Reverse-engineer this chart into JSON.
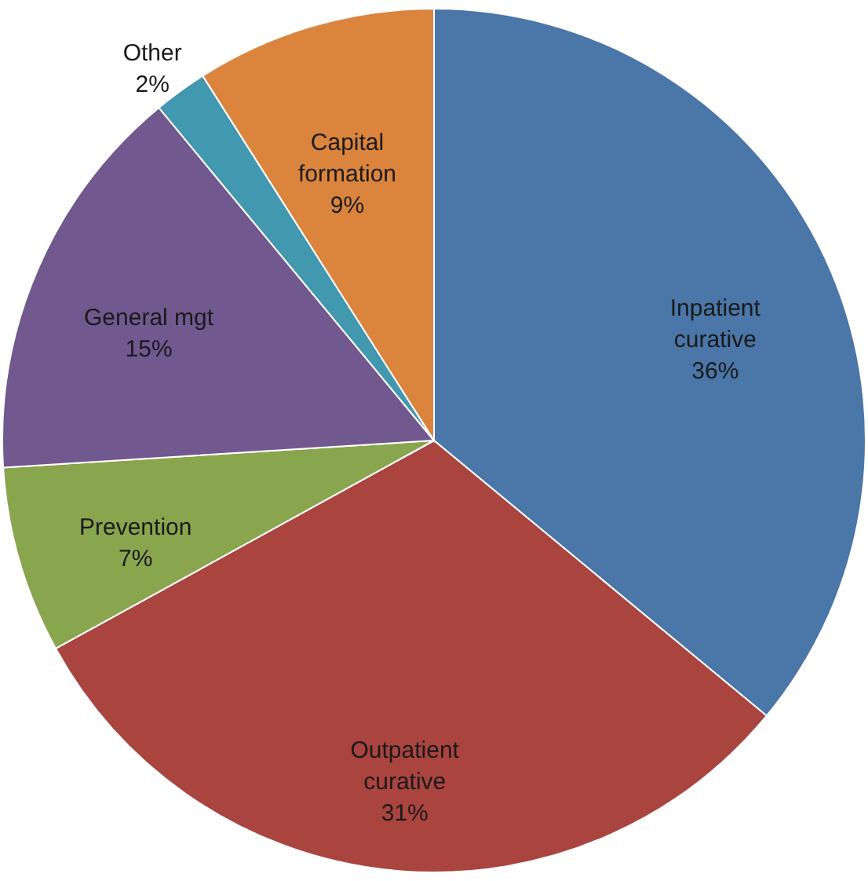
{
  "chart_data": {
    "type": "pie",
    "categories": [
      "Inpatient\ncurative",
      "Outpatient\ncurative",
      "Prevention",
      "General mgt",
      "Other",
      "Capital\nformation"
    ],
    "values": [
      36,
      31,
      7,
      15,
      2,
      9
    ],
    "colors": [
      "#4a76a8",
      "#a9443f",
      "#89a54e",
      "#71588f",
      "#4198af",
      "#db843d"
    ],
    "value_labels": [
      "36%",
      "31%",
      "7%",
      "15%",
      "2%",
      "9%"
    ]
  }
}
